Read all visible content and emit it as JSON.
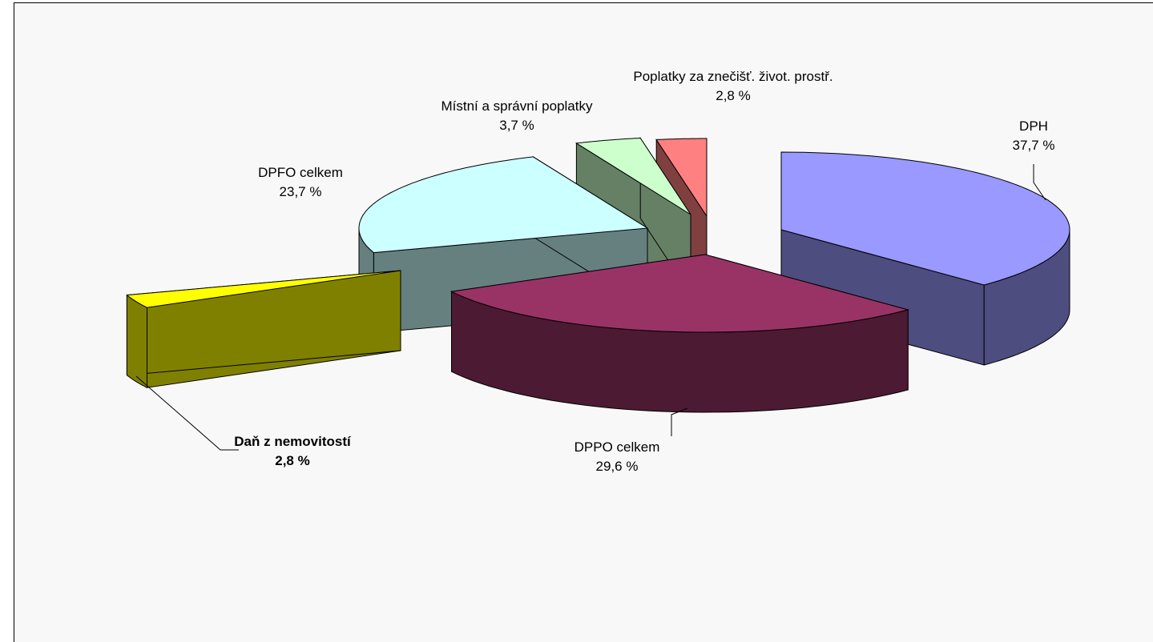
{
  "chart_data": {
    "type": "pie",
    "categories": [
      "DPH",
      "DPPO celkem",
      "Daň z nemovitostí",
      "DPFO celkem",
      "Místní a správní poplatky",
      "Poplatky za znečišť. život. prostř."
    ],
    "values": [
      37.7,
      29.6,
      2.8,
      23.7,
      3.7,
      2.8
    ],
    "value_labels": [
      "37,7 %",
      "29,6 %",
      "2,8 %",
      "23,7 %",
      "3,7 %",
      "2,8 %"
    ],
    "colors": [
      "#9999ff",
      "#993366",
      "#ffff00",
      "#ccffff",
      "#ccffcc",
      "#ff8080"
    ]
  }
}
